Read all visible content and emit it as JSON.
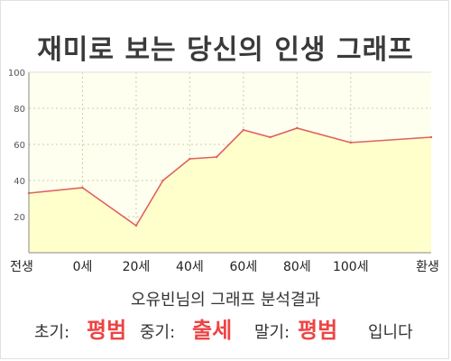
{
  "title": "재미로 보는 당신의 인생 그래프",
  "result": {
    "heading": "오유빈님의 그래프 분석결과",
    "early_label": "초기:",
    "early_value": "평범",
    "mid_label": "중기:",
    "mid_value": "출세",
    "late_label": "말기:",
    "late_value": "평범",
    "ending": "입니다"
  },
  "colors": {
    "line": "#e06060",
    "fill": "#ffffcc",
    "plot_bg": "#fffff0",
    "grid": "#ccccaa",
    "axis": "#888888",
    "result_value": "#ee4444"
  },
  "chart_data": {
    "type": "area",
    "title": "재미로 보는 당신의 인생 그래프",
    "xlabel": "",
    "ylabel": "",
    "x_tick_labels": [
      "전생",
      "0세",
      "20세",
      "40세",
      "60세",
      "80세",
      "100세",
      "환생"
    ],
    "y_ticks": [
      20,
      40,
      60,
      80,
      100
    ],
    "ylim": [
      0,
      100
    ],
    "grid": true,
    "points": [
      {
        "x": "전생",
        "y": 33
      },
      {
        "x": "0세",
        "y": 36
      },
      {
        "x": "20세",
        "y": 15
      },
      {
        "x": "30세",
        "y": 40
      },
      {
        "x": "40세",
        "y": 52
      },
      {
        "x": "50세",
        "y": 53
      },
      {
        "x": "60세",
        "y": 68
      },
      {
        "x": "70세",
        "y": 64
      },
      {
        "x": "80세",
        "y": 69
      },
      {
        "x": "100세",
        "y": 61
      },
      {
        "x": "환생",
        "y": 64
      }
    ]
  }
}
